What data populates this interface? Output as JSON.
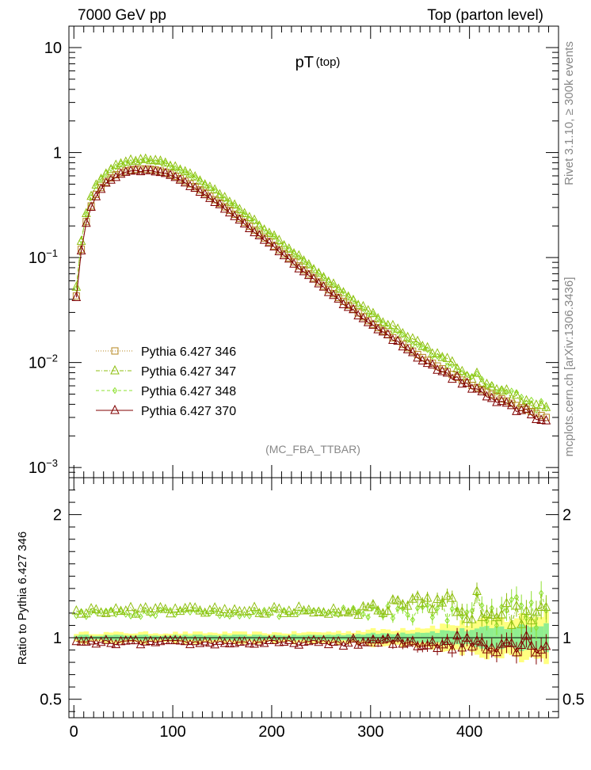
{
  "chart_data": {
    "type": "scatter",
    "header": {
      "left": "7000 GeV pp",
      "right": "Top (parton level)"
    },
    "title": "pT",
    "title_sub": "(top)",
    "watermark": "(MC_FBA_TTBAR)",
    "side_text_top": "Rivet 3.1.10, ≥ 300k events",
    "side_text_bottom": "mcplots.cern.ch [arXiv:1306.3436]",
    "main": {
      "yscale": "log",
      "ylim": [
        0.0008,
        16
      ],
      "ytick_labels": [
        {
          "value": 10,
          "base": "10",
          "exp": ""
        },
        {
          "value": 1,
          "base": "1",
          "exp": ""
        },
        {
          "value": 0.1,
          "base": "10",
          "exp": "−1"
        },
        {
          "value": 0.01,
          "base": "10",
          "exp": "−2"
        },
        {
          "value": 0.001,
          "base": "10",
          "exp": "−3"
        }
      ]
    },
    "ratio": {
      "ylabel": "Ratio to Pythia 6.427 346",
      "ylim": [
        0.35,
        2.3
      ],
      "yticks": [
        0.5,
        1,
        2
      ],
      "ytick_labels": [
        "0.5",
        "1",
        "2"
      ]
    },
    "xlim": [
      -5,
      490
    ],
    "xticks": [
      0,
      100,
      200,
      300,
      400
    ],
    "xtick_labels": [
      "0",
      "100",
      "200",
      "300",
      "400"
    ],
    "bin_width": 5,
    "curve_model": {
      "description": "reference (346) spectrum: rise then exponential fall",
      "knots_x": [
        2.5,
        7.5,
        12.5,
        17.5,
        22.5,
        30,
        40,
        50,
        60,
        70,
        80,
        90,
        100,
        120,
        140,
        160,
        180,
        200,
        250,
        300,
        350,
        400,
        450,
        477.5
      ],
      "knots_y": [
        0.043,
        0.12,
        0.22,
        0.31,
        0.4,
        0.5,
        0.6,
        0.66,
        0.69,
        0.7,
        0.69,
        0.66,
        0.61,
        0.49,
        0.37,
        0.27,
        0.19,
        0.135,
        0.056,
        0.024,
        0.0115,
        0.0062,
        0.0038,
        0.003
      ]
    },
    "series": [
      {
        "name": "Pythia 6.427 346",
        "color": "#b5851e",
        "marker": "square",
        "line": "dotted",
        "ratio_level": 1.0,
        "noise": 0.0
      },
      {
        "name": "Pythia 6.427 347",
        "color": "#8fbf10",
        "marker": "triangle",
        "line": "dashdot",
        "ratio_level": 1.22,
        "noise": 0.03
      },
      {
        "name": "Pythia 6.427 348",
        "color": "#8ee030",
        "marker": "diamond",
        "line": "dashed",
        "ratio_level": 1.2,
        "noise": 0.03
      },
      {
        "name": "Pythia 6.427 370",
        "color": "#800000",
        "marker": "triangle",
        "line": "solid",
        "ratio_level": 0.96,
        "noise": 0.02
      }
    ],
    "ratio_band": {
      "inner_color": "#90ee90",
      "outer_color": "#ffff80",
      "inner_width_at_low_pt": 0.02,
      "inner_width_at_high_pt": 0.11,
      "outer_width_at_low_pt": 0.04,
      "outer_width_at_high_pt": 0.2
    }
  }
}
